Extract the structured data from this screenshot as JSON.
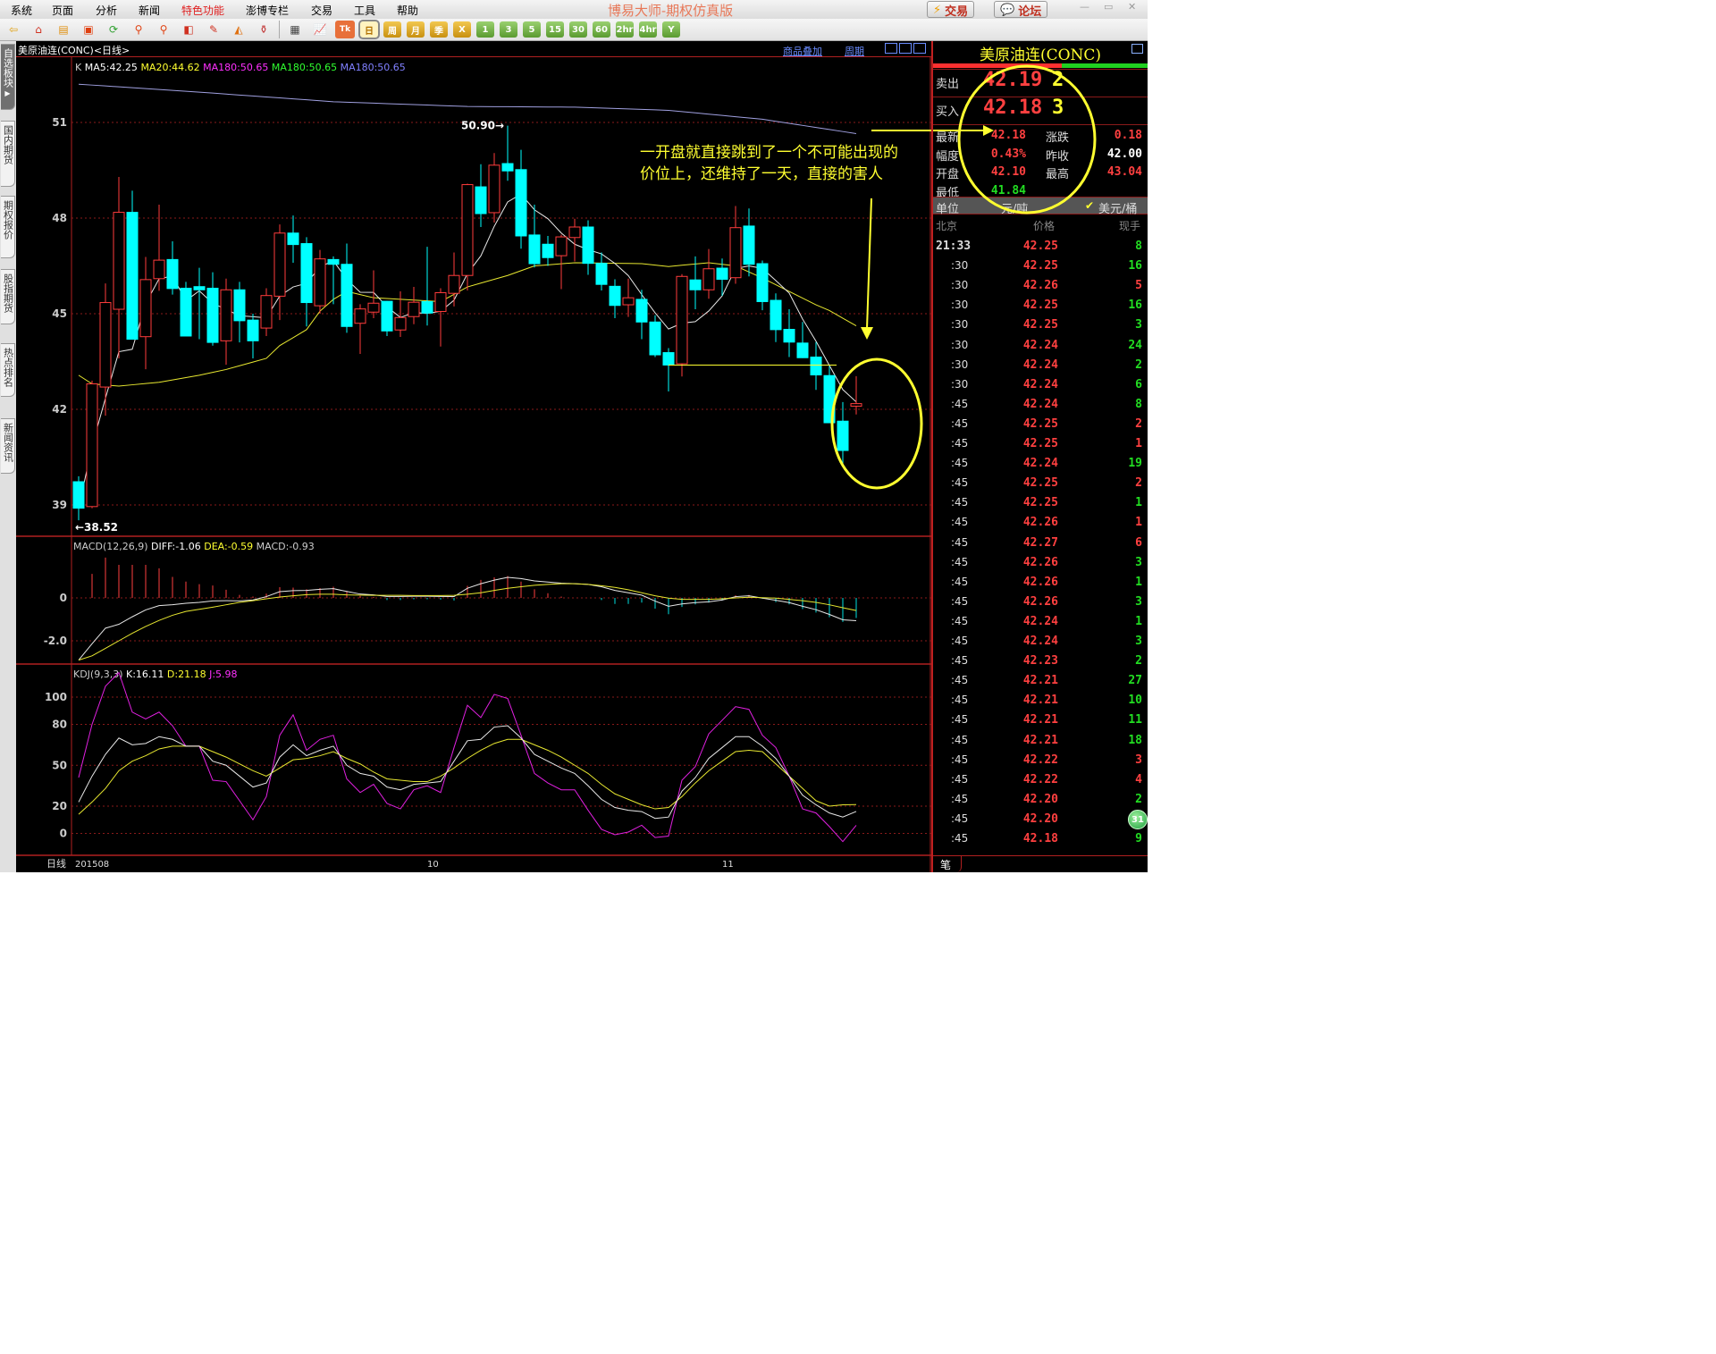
{
  "menu": [
    "系统",
    "页面",
    "分析",
    "新闻",
    "特色功能",
    "澎博专栏",
    "交易",
    "工具",
    "帮助"
  ],
  "menu_highlight_index": 4,
  "app_title": "博易大师-期权仿真版",
  "top_buttons": {
    "trade": "交易",
    "forum": "论坛"
  },
  "window_controls": [
    "minimize",
    "maximize",
    "close"
  ],
  "toolbar": {
    "icons": [
      "back-arrow-icon",
      "home-icon",
      "notebook-icon",
      "news-icon",
      "refresh-icon",
      "zoom-in-icon",
      "zoom-out-icon",
      "window-icon",
      "pen-icon",
      "draw-icon",
      "filter-icon",
      "table-icon",
      "chart-icon",
      "tick-icon"
    ],
    "timeframes": [
      {
        "label": "日",
        "style": "sel"
      },
      {
        "label": "周",
        "style": "gold"
      },
      {
        "label": "月",
        "style": "gold"
      },
      {
        "label": "季",
        "style": "gold"
      },
      {
        "label": "X",
        "style": "gold"
      },
      {
        "label": "1",
        "style": "green"
      },
      {
        "label": "3",
        "style": "green"
      },
      {
        "label": "5",
        "style": "green"
      },
      {
        "label": "15",
        "style": "green"
      },
      {
        "label": "30",
        "style": "green"
      },
      {
        "label": "60",
        "style": "green"
      },
      {
        "label": "2hr",
        "style": "green"
      },
      {
        "label": "4hr",
        "style": "green"
      },
      {
        "label": "Y",
        "style": "green"
      }
    ]
  },
  "left_tabs": [
    "自选板块",
    "国内期货",
    "期权报价",
    "股指期货",
    "热点排名",
    "新闻资讯"
  ],
  "chart_header": {
    "title": "美原油连(CONC)<日线>",
    "overlay_link": "商品叠加",
    "period_link": "周期"
  },
  "chart_data": {
    "type": "candlestick",
    "period_label": "日线",
    "x_ticks": [
      {
        "label": "201508",
        "index": 1
      },
      {
        "label": "10",
        "index": 27
      },
      {
        "label": "11",
        "index": 49
      }
    ],
    "price_axis": {
      "ticks": [
        51,
        48,
        45,
        42,
        39
      ]
    },
    "legend": [
      {
        "text": "K",
        "color": "#cccccc"
      },
      {
        "text": "MA5:42.25",
        "color": "#ffffff"
      },
      {
        "text": "MA20:44.62",
        "color": "#ffff30"
      },
      {
        "text": "MA180:50.65",
        "color": "#ff30ff"
      },
      {
        "text": "MA180:50.65",
        "color": "#30ff30"
      },
      {
        "text": "MA180:50.65",
        "color": "#8080ff"
      }
    ],
    "ohlc": [
      [
        39.73,
        39.9,
        38.52,
        38.9
      ],
      [
        38.95,
        42.9,
        38.9,
        42.8
      ],
      [
        42.7,
        45.95,
        41.8,
        45.35
      ],
      [
        45.14,
        49.29,
        43.6,
        48.18
      ],
      [
        48.18,
        48.86,
        44.2,
        44.2
      ],
      [
        44.28,
        46.78,
        43.26,
        46.07
      ],
      [
        46.1,
        48.42,
        45.72,
        46.68
      ],
      [
        46.7,
        47.27,
        45.6,
        45.79
      ],
      [
        45.8,
        46.0,
        44.3,
        44.3
      ],
      [
        45.85,
        46.44,
        44.2,
        45.75
      ],
      [
        45.8,
        46.3,
        44.0,
        44.1
      ],
      [
        44.15,
        46.1,
        43.4,
        45.75
      ],
      [
        45.75,
        46.0,
        44.1,
        44.78
      ],
      [
        44.8,
        45.0,
        43.6,
        44.15
      ],
      [
        44.55,
        45.8,
        44.3,
        45.57
      ],
      [
        45.55,
        47.8,
        44.8,
        47.53
      ],
      [
        47.53,
        48.08,
        46.6,
        47.17
      ],
      [
        47.2,
        47.4,
        44.6,
        45.35
      ],
      [
        45.25,
        47.0,
        45.0,
        46.72
      ],
      [
        46.7,
        46.8,
        45.3,
        46.55
      ],
      [
        46.55,
        47.2,
        44.4,
        44.6
      ],
      [
        44.7,
        45.3,
        43.74,
        45.15
      ],
      [
        45.05,
        46.36,
        44.86,
        45.33
      ],
      [
        45.39,
        45.4,
        44.3,
        44.46
      ],
      [
        44.49,
        45.7,
        44.27,
        44.88
      ],
      [
        44.91,
        45.84,
        44.67,
        45.36
      ],
      [
        45.38,
        47.1,
        44.63,
        45.02
      ],
      [
        45.07,
        45.8,
        43.97,
        45.66
      ],
      [
        45.64,
        46.92,
        45.23,
        46.2
      ],
      [
        46.2,
        49.08,
        45.73,
        49.05
      ],
      [
        48.98,
        49.69,
        47.72,
        48.14
      ],
      [
        48.17,
        50.04,
        47.86,
        49.66
      ],
      [
        49.71,
        50.9,
        49.17,
        49.48
      ],
      [
        49.52,
        50.14,
        47.04,
        47.44
      ],
      [
        47.47,
        48.42,
        46.45,
        46.57
      ],
      [
        47.18,
        47.44,
        46.5,
        46.76
      ],
      [
        46.82,
        47.48,
        45.77,
        47.41
      ],
      [
        47.39,
        47.98,
        46.64,
        47.72
      ],
      [
        47.72,
        47.93,
        46.22,
        46.58
      ],
      [
        46.58,
        46.92,
        45.73,
        45.92
      ],
      [
        45.86,
        46.08,
        44.86,
        45.26
      ],
      [
        45.28,
        46.1,
        44.9,
        45.5
      ],
      [
        45.45,
        45.75,
        44.2,
        44.74
      ],
      [
        44.74,
        44.95,
        43.64,
        43.71
      ],
      [
        43.78,
        43.92,
        42.56,
        43.39
      ],
      [
        43.43,
        46.24,
        43.03,
        46.17
      ],
      [
        46.06,
        46.8,
        45.14,
        45.75
      ],
      [
        45.75,
        47.03,
        45.47,
        46.41
      ],
      [
        46.43,
        46.73,
        45.56,
        46.08
      ],
      [
        46.13,
        48.38,
        45.94,
        47.7
      ],
      [
        47.75,
        48.3,
        46.17,
        46.55
      ],
      [
        46.57,
        46.67,
        45.11,
        45.38
      ],
      [
        45.42,
        45.64,
        44.11,
        44.5
      ],
      [
        44.51,
        45.14,
        43.64,
        44.11
      ],
      [
        44.08,
        44.74,
        43.61,
        43.62
      ],
      [
        43.64,
        44.11,
        42.61,
        43.08
      ],
      [
        43.06,
        43.36,
        41.58,
        41.58
      ],
      [
        41.63,
        42.23,
        40.2,
        40.71
      ],
      [
        42.1,
        43.04,
        41.84,
        42.18
      ]
    ],
    "ma20_points": [
      [
        1,
        43.07
      ],
      [
        2,
        42.8
      ],
      [
        4,
        42.73
      ],
      [
        7,
        42.85
      ],
      [
        10,
        43.07
      ],
      [
        12,
        43.25
      ],
      [
        15,
        43.6
      ],
      [
        16,
        44.0
      ],
      [
        18,
        44.5
      ],
      [
        19,
        45.08
      ],
      [
        20,
        45.45
      ],
      [
        21,
        45.7
      ],
      [
        23,
        45.5
      ],
      [
        28,
        45.38
      ],
      [
        30,
        45.84
      ],
      [
        33,
        46.2
      ],
      [
        35,
        46.5
      ],
      [
        38,
        46.6
      ],
      [
        43,
        46.57
      ],
      [
        45,
        46.48
      ],
      [
        48,
        46.6
      ],
      [
        50,
        46.5
      ],
      [
        52,
        46.12
      ],
      [
        54,
        45.7
      ],
      [
        56,
        45.28
      ],
      [
        57,
        45.1
      ],
      [
        59,
        44.62
      ]
    ],
    "ma180_points": [
      [
        1,
        52.2
      ],
      [
        10,
        51.95
      ],
      [
        20,
        51.65
      ],
      [
        30,
        51.5
      ],
      [
        38,
        51.48
      ],
      [
        45,
        51.38
      ],
      [
        52,
        51.1
      ],
      [
        59,
        50.65
      ]
    ],
    "high_label": "50.90",
    "low_label": "38.52",
    "support_line": {
      "value": 43.39,
      "from": 45,
      "to": 57
    },
    "macd": {
      "label": "MACD(12,26,9)",
      "diff_label": "DIFF:-1.06",
      "dea_label": "DEA:-0.59",
      "macd_label": "MACD:-0.93",
      "ticks": [
        {
          "v": 0,
          "label": "0"
        },
        {
          "v": -2,
          "label": "-2.0"
        }
      ],
      "diff": [
        -2.9,
        -2.14,
        -1.41,
        -1.23,
        -0.88,
        -0.56,
        -0.36,
        -0.32,
        -0.25,
        -0.21,
        -0.14,
        -0.13,
        -0.14,
        -0.1,
        0.06,
        0.29,
        0.34,
        0.35,
        0.4,
        0.43,
        0.3,
        0.18,
        0.14,
        0.07,
        0.07,
        0.08,
        0.08,
        0.07,
        0.06,
        0.45,
        0.66,
        0.83,
        0.96,
        0.9,
        0.79,
        0.74,
        0.69,
        0.66,
        0.63,
        0.52,
        0.35,
        0.24,
        0.13,
        -0.15,
        -0.39,
        -0.28,
        -0.22,
        -0.18,
        -0.1,
        0.06,
        0.1,
        -0.01,
        -0.11,
        -0.22,
        -0.39,
        -0.55,
        -0.77,
        -1.02,
        -1.06
      ],
      "dea": [
        -2.9,
        -2.7,
        -2.35,
        -2.0,
        -1.65,
        -1.33,
        -1.05,
        -0.81,
        -0.63,
        -0.53,
        -0.43,
        -0.32,
        -0.21,
        -0.13,
        -0.04,
        0.04,
        0.1,
        0.15,
        0.17,
        0.17,
        0.14,
        0.13,
        0.12,
        0.12,
        0.12,
        0.11,
        0.11,
        0.11,
        0.12,
        0.17,
        0.24,
        0.35,
        0.45,
        0.52,
        0.59,
        0.63,
        0.66,
        0.66,
        0.63,
        0.57,
        0.49,
        0.38,
        0.24,
        0.1,
        -0.01,
        -0.07,
        -0.07,
        -0.07,
        -0.04,
        0,
        0.03,
        0.01,
        -0.01,
        -0.07,
        -0.13,
        -0.21,
        -0.32,
        -0.46,
        -0.59
      ]
    },
    "kdj": {
      "label": "KDJ(9,3,3)",
      "k_label": "K:16.11",
      "d_label": "D:21.18",
      "j_label": "J:5.98",
      "ticks": [
        100,
        80,
        50,
        20,
        0
      ],
      "k": [
        23,
        42,
        58,
        70,
        65,
        66,
        71,
        69,
        64,
        64,
        53,
        50,
        42,
        34,
        37,
        56,
        65,
        57,
        61,
        64,
        50,
        44,
        42,
        34,
        32,
        36,
        37,
        38,
        53,
        68,
        69,
        78,
        79,
        70,
        58,
        53,
        48,
        44,
        35,
        25,
        19,
        17,
        16,
        11,
        12,
        31,
        41,
        55,
        63,
        71,
        71,
        64,
        55,
        42,
        28,
        21,
        15,
        12,
        16.11
      ],
      "d": [
        14,
        23,
        33,
        46,
        53,
        57,
        62,
        64,
        64,
        64,
        60,
        56,
        51,
        46,
        42,
        48,
        54,
        55,
        57,
        60,
        55,
        51,
        45,
        40,
        39,
        38,
        38,
        42,
        48,
        55,
        61,
        66,
        69,
        69,
        65,
        61,
        56,
        50,
        44,
        36,
        29,
        25,
        21,
        18,
        19,
        27,
        37,
        46,
        53,
        60,
        61,
        60,
        51,
        42,
        33,
        24,
        20,
        21,
        21.18
      ]
    },
    "annotation": {
      "line1": "一开盘就直接跳到了一个不可能出现的",
      "line2": "价位上，还维持了一天，直接的害人"
    }
  },
  "quote_panel": {
    "title": "美原油连(CONC)",
    "sell": {
      "label": "卖出",
      "price": "42.19",
      "qty": "2"
    },
    "buy": {
      "label": "买入",
      "price": "42.18",
      "qty": "3"
    },
    "stats": [
      {
        "l1": "最新",
        "v1": "42.18",
        "c1": "red",
        "l2": "涨跌",
        "v2": "0.18",
        "c2": "red"
      },
      {
        "l1": "幅度",
        "v1": "0.43%",
        "c1": "red",
        "l2": "昨收",
        "v2": "42.00",
        "c2": "wht"
      },
      {
        "l1": "开盘",
        "v1": "42.10",
        "c1": "red",
        "l2": "最高",
        "v2": "43.04",
        "c2": "red"
      },
      {
        "l1": "最低",
        "v1": "41.84",
        "c1": "grn",
        "l2": "",
        "v2": "",
        "c2": "wht"
      }
    ],
    "unit": {
      "label": "单位",
      "option1": "元/吨",
      "option2": "美元/桶",
      "checked": "option2"
    },
    "tick_headers": [
      "北京",
      "价格",
      "现手"
    ],
    "ticks": [
      [
        "21:33",
        "42.25",
        "8",
        "grn"
      ],
      [
        ":30",
        "42.25",
        "16",
        "grn"
      ],
      [
        ":30",
        "42.26",
        "5",
        "red"
      ],
      [
        ":30",
        "42.25",
        "16",
        "grn"
      ],
      [
        ":30",
        "42.25",
        "3",
        "grn"
      ],
      [
        ":30",
        "42.24",
        "24",
        "grn"
      ],
      [
        ":30",
        "42.24",
        "2",
        "grn"
      ],
      [
        ":30",
        "42.24",
        "6",
        "grn"
      ],
      [
        ":45",
        "42.24",
        "8",
        "grn"
      ],
      [
        ":45",
        "42.25",
        "2",
        "red"
      ],
      [
        ":45",
        "42.25",
        "1",
        "red"
      ],
      [
        ":45",
        "42.24",
        "19",
        "grn"
      ],
      [
        ":45",
        "42.25",
        "2",
        "red"
      ],
      [
        ":45",
        "42.25",
        "1",
        "grn"
      ],
      [
        ":45",
        "42.26",
        "1",
        "red"
      ],
      [
        ":45",
        "42.27",
        "6",
        "red"
      ],
      [
        ":45",
        "42.26",
        "3",
        "grn"
      ],
      [
        ":45",
        "42.26",
        "1",
        "grn"
      ],
      [
        ":45",
        "42.26",
        "3",
        "grn"
      ],
      [
        ":45",
        "42.24",
        "1",
        "grn"
      ],
      [
        ":45",
        "42.24",
        "3",
        "grn"
      ],
      [
        ":45",
        "42.23",
        "2",
        "grn"
      ],
      [
        ":45",
        "42.21",
        "27",
        "grn"
      ],
      [
        ":45",
        "42.21",
        "10",
        "grn"
      ],
      [
        ":45",
        "42.21",
        "11",
        "grn"
      ],
      [
        ":45",
        "42.21",
        "18",
        "grn"
      ],
      [
        ":45",
        "42.22",
        "3",
        "red"
      ],
      [
        ":45",
        "42.22",
        "4",
        "red"
      ],
      [
        ":45",
        "42.20",
        "2",
        "grn"
      ],
      [
        ":45",
        "42.20",
        "",
        "grn"
      ],
      [
        ":45",
        "42.18",
        "9",
        "grn"
      ]
    ],
    "bubble": "31",
    "bottom_tab": "笔"
  }
}
